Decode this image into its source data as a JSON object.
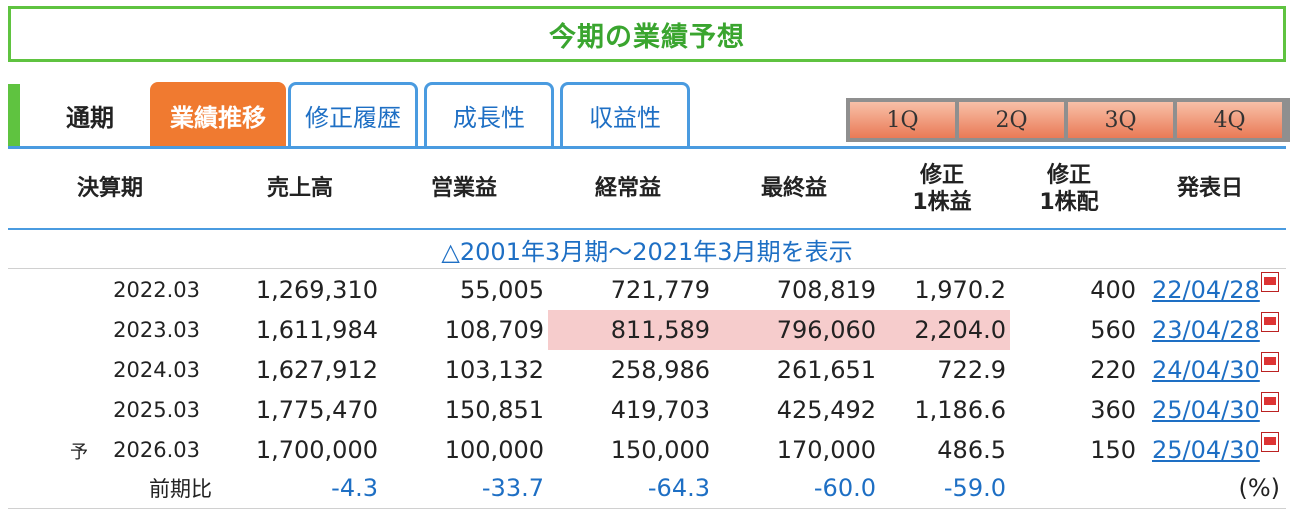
{
  "title": "今期の業績予想",
  "tabs": {
    "plain": "通期",
    "items": [
      {
        "label": "業績推移",
        "active": true
      },
      {
        "label": "修正履歴",
        "active": false
      },
      {
        "label": "成長性",
        "active": false
      },
      {
        "label": "収益性",
        "active": false
      }
    ]
  },
  "quarters": [
    "1Q",
    "2Q",
    "3Q",
    "4Q"
  ],
  "headers": {
    "period": "決算期",
    "sales": "売上高",
    "operating": "営業益",
    "ordinary": "経常益",
    "net": "最終益",
    "eps_l1": "修正",
    "eps_l2": "1株益",
    "div_l1": "修正",
    "div_l2": "1株配",
    "date": "発表日"
  },
  "toggle_label": "△2001年3月期～2021年3月期を表示",
  "rows": [
    {
      "prefix": "",
      "period": "2022.03",
      "sales": "1,269,310",
      "operating": "55,005",
      "ordinary": "721,779",
      "net": "708,819",
      "eps": "1,970.2",
      "div": "400",
      "date": "22/04/28"
    },
    {
      "prefix": "",
      "period": "2023.03",
      "sales": "1,611,984",
      "operating": "108,709",
      "ordinary": "811,589",
      "net": "796,060",
      "eps": "2,204.0",
      "div": "560",
      "date": "23/04/28"
    },
    {
      "prefix": "",
      "period": "2024.03",
      "sales": "1,627,912",
      "operating": "103,132",
      "ordinary": "258,986",
      "net": "261,651",
      "eps": "722.9",
      "div": "220",
      "date": "24/04/30"
    },
    {
      "prefix": "",
      "period": "2025.03",
      "sales": "1,775,470",
      "operating": "150,851",
      "ordinary": "419,703",
      "net": "425,492",
      "eps": "1,186.6",
      "div": "360",
      "date": "25/04/30"
    },
    {
      "prefix": "予",
      "period": "2026.03",
      "sales": "1,700,000",
      "operating": "100,000",
      "ordinary": "150,000",
      "net": "170,000",
      "eps": "486.5",
      "div": "150",
      "date": "25/04/30"
    }
  ],
  "comparison": {
    "label": "前期比",
    "sales": "-4.3",
    "operating": "-33.7",
    "ordinary": "-64.3",
    "net": "-60.0",
    "eps": "-59.0",
    "unit": "(%)"
  },
  "colors": {
    "title_green": "#3aa52f",
    "tab_active": "#f07a30",
    "link_blue": "#1e6fc4",
    "highlight": "#f6cccc"
  }
}
